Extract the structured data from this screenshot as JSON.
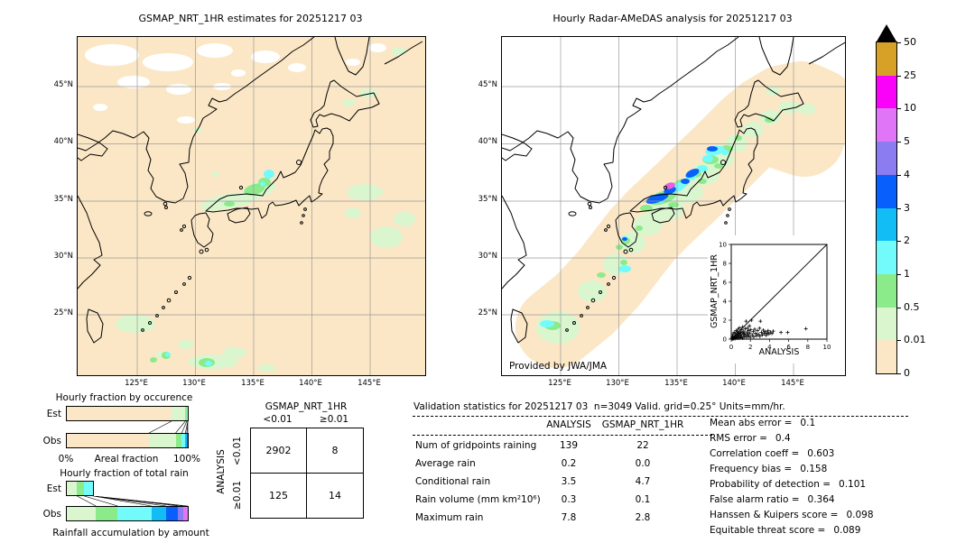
{
  "header": {
    "left_title": "GSMAP_NRT_1HR estimates for 20251217 03",
    "right_title": "Hourly Radar-AMeDAS analysis for 20251217 03"
  },
  "right_map_credit": "Provided by JWA/JMA",
  "axes": {
    "lat": [
      "45°N",
      "40°N",
      "35°N",
      "30°N",
      "25°N"
    ],
    "lon": [
      "125°E",
      "130°E",
      "135°E",
      "140°E",
      "145°E"
    ]
  },
  "colorbar": {
    "tick_labels": [
      "50",
      "25",
      "10",
      "5",
      "4",
      "3",
      "2",
      "1",
      "0.5",
      "0.01",
      "0"
    ],
    "segment_colors": [
      "#d7a127",
      "#fa01fa",
      "#e175f8",
      "#8b7cf2",
      "#085ffb",
      "#12bdf6",
      "#73fbfb",
      "#8beb8b",
      "#d9f6cf",
      "#fbe7c6"
    ],
    "overflow_color": "#000000"
  },
  "chart_data": [
    {
      "id": "hourly_fraction_by_occurrence",
      "type": "bar",
      "stacked": true,
      "orientation": "horizontal",
      "title": "Hourly fraction by occurence",
      "xlabel": "Areal fraction",
      "xlim": [
        0,
        100
      ],
      "x_tick_labels": [
        "0%",
        "100%"
      ],
      "categories": [
        "Est",
        "Obs"
      ],
      "series": [
        {
          "name": "0-0.01 mm/hr",
          "color": "#fbe7c6",
          "values": [
            86.5,
            68.0
          ]
        },
        {
          "name": "0.01-0.5 mm/hr",
          "color": "#d9f6cf",
          "values": [
            11.5,
            22.0
          ]
        },
        {
          "name": "0.5-1 mm/hr",
          "color": "#8beb8b",
          "values": [
            1.2,
            5.0
          ]
        },
        {
          "name": "1-2 mm/hr",
          "color": "#73fbfb",
          "values": [
            0.8,
            3.0
          ]
        },
        {
          "name": "2-3 mm/hr",
          "color": "#12bdf6",
          "values": [
            0,
            1.2
          ]
        },
        {
          "name": "3-4 mm/hr",
          "color": "#085ffb",
          "values": [
            0,
            0.8
          ]
        }
      ]
    },
    {
      "id": "hourly_fraction_of_total_rain",
      "type": "bar",
      "stacked": true,
      "orientation": "horizontal",
      "title": "Hourly fraction of total rain",
      "xlabel": "Rainfall accumulation by amount",
      "xlim": [
        0,
        100
      ],
      "categories": [
        "Est",
        "Obs"
      ],
      "series": [
        {
          "name": "0.01-0.5 mm/hr",
          "color": "#d9f6cf",
          "values": [
            8.5,
            24.0
          ]
        },
        {
          "name": "0.5-1 mm/hr",
          "color": "#8beb8b",
          "values": [
            6.0,
            18.0
          ]
        },
        {
          "name": "1-2 mm/hr",
          "color": "#73fbfb",
          "values": [
            7.5,
            28.0
          ]
        },
        {
          "name": "2-3 mm/hr",
          "color": "#12bdf6",
          "values": [
            0,
            12.0
          ]
        },
        {
          "name": "3-4 mm/hr",
          "color": "#085ffb",
          "values": [
            0,
            10.0
          ]
        },
        {
          "name": "4-5 mm/hr",
          "color": "#8b7cf2",
          "values": [
            0,
            4.5
          ]
        },
        {
          "name": "5-10 mm/hr",
          "color": "#e175f8",
          "values": [
            0,
            3.5
          ]
        }
      ]
    },
    {
      "id": "contingency_table",
      "type": "table",
      "col_group": "GSMAP_NRT_1HR",
      "row_group": "ANALYSIS",
      "col_headers": [
        "<0.01",
        "≥0.01"
      ],
      "row_headers": [
        "<0.01",
        "≥0.01"
      ],
      "values": [
        [
          "2902",
          "8"
        ],
        [
          "125",
          "14"
        ]
      ]
    },
    {
      "id": "validation_statistics",
      "type": "table",
      "title": "Validation statistics for 20251217 03  n=3049 Valid. grid=0.25° Units=mm/hr.",
      "columns": [
        "ANALYSIS",
        "GSMAP_NRT_1HR"
      ],
      "rows": [
        {
          "label": "Num of gridpoints raining",
          "analysis": "139",
          "gsmap": "22"
        },
        {
          "label": "Average rain",
          "analysis": "0.2",
          "gsmap": "0.0"
        },
        {
          "label": "Conditional rain",
          "analysis": "3.5",
          "gsmap": "4.7"
        },
        {
          "label": "Rain volume (mm km²10⁶)",
          "analysis": "0.3",
          "gsmap": "0.1"
        },
        {
          "label": "Maximum rain",
          "analysis": "7.8",
          "gsmap": "2.8"
        }
      ],
      "metrics": [
        {
          "label": "Mean abs error =",
          "value": "0.1"
        },
        {
          "label": "RMS error =",
          "value": "0.4"
        },
        {
          "label": "Correlation coeff =",
          "value": "0.603"
        },
        {
          "label": "Frequency bias =",
          "value": "0.158"
        },
        {
          "label": "Probability of detection =",
          "value": "0.101"
        },
        {
          "label": "False alarm ratio =",
          "value": "0.364"
        },
        {
          "label": "Hanssen & Kuipers score =",
          "value": "0.098"
        },
        {
          "label": "Equitable threat score =",
          "value": "0.089"
        }
      ]
    },
    {
      "id": "inset_scatter",
      "type": "scatter",
      "xlabel": "ANALYSIS",
      "ylabel": "GSMAP_NRT_1HR",
      "xlim": [
        0,
        10
      ],
      "ylim": [
        0,
        10
      ],
      "ticks": [
        0,
        2,
        4,
        6,
        8,
        10
      ],
      "identity_line": true,
      "points": [
        [
          0.05,
          0.1
        ],
        [
          0.1,
          0.02
        ],
        [
          0.12,
          0.3
        ],
        [
          0.15,
          0.08
        ],
        [
          0.2,
          0.15
        ],
        [
          0.2,
          0.55
        ],
        [
          0.25,
          0.05
        ],
        [
          0.3,
          0.25
        ],
        [
          0.3,
          0.7
        ],
        [
          0.35,
          0.1
        ],
        [
          0.4,
          0.3
        ],
        [
          0.4,
          0.05
        ],
        [
          0.45,
          0.6
        ],
        [
          0.5,
          0.15
        ],
        [
          0.5,
          0.9
        ],
        [
          0.55,
          0.35
        ],
        [
          0.6,
          0.1
        ],
        [
          0.6,
          0.55
        ],
        [
          0.65,
          0.8
        ],
        [
          0.7,
          0.25
        ],
        [
          0.7,
          1.05
        ],
        [
          0.75,
          0.45
        ],
        [
          0.8,
          0.1
        ],
        [
          0.8,
          0.65
        ],
        [
          0.85,
          1.2
        ],
        [
          0.9,
          0.35
        ],
        [
          0.95,
          0.75
        ],
        [
          1.0,
          0.15
        ],
        [
          1.0,
          0.55
        ],
        [
          1.05,
          1.0
        ],
        [
          1.1,
          0.3
        ],
        [
          1.15,
          0.7
        ],
        [
          1.2,
          0.1
        ],
        [
          1.2,
          1.3
        ],
        [
          1.25,
          0.5
        ],
        [
          1.3,
          0.85
        ],
        [
          1.35,
          0.25
        ],
        [
          1.4,
          0.6
        ],
        [
          1.45,
          1.1
        ],
        [
          1.5,
          0.4
        ],
        [
          1.55,
          1.9
        ],
        [
          1.6,
          0.2
        ],
        [
          1.65,
          0.75
        ],
        [
          1.7,
          1.15
        ],
        [
          1.75,
          0.5
        ],
        [
          1.8,
          0.9
        ],
        [
          1.85,
          0.3
        ],
        [
          1.9,
          1.4
        ],
        [
          1.95,
          0.65
        ],
        [
          2.0,
          0.2
        ],
        [
          2.05,
          1.0
        ],
        [
          2.1,
          2.0
        ],
        [
          2.2,
          0.45
        ],
        [
          2.3,
          0.8
        ],
        [
          2.35,
          0.25
        ],
        [
          2.45,
          1.05
        ],
        [
          2.55,
          0.6
        ],
        [
          2.65,
          0.35
        ],
        [
          2.75,
          0.9
        ],
        [
          2.85,
          0.5
        ],
        [
          2.95,
          1.15
        ],
        [
          3.0,
          0.3
        ],
        [
          3.05,
          1.9
        ],
        [
          3.15,
          0.7
        ],
        [
          3.25,
          0.45
        ],
        [
          3.35,
          0.95
        ],
        [
          3.45,
          0.6
        ],
        [
          3.55,
          0.8
        ],
        [
          3.65,
          0.4
        ],
        [
          3.75,
          0.65
        ],
        [
          3.85,
          0.9
        ],
        [
          3.95,
          0.55
        ],
        [
          4.1,
          0.75
        ],
        [
          4.25,
          0.6
        ],
        [
          4.4,
          0.85
        ],
        [
          5.2,
          0.7
        ],
        [
          5.9,
          0.7
        ],
        [
          7.8,
          1.1
        ]
      ]
    },
    {
      "id": "precip_colour_scale",
      "type": "heatmap",
      "units": "mm/hr",
      "levels": [
        0,
        0.01,
        0.5,
        1,
        2,
        3,
        4,
        5,
        10,
        25,
        50
      ],
      "colors_low_to_high": [
        "#fbe7c6",
        "#d9f6cf",
        "#8beb8b",
        "#73fbfb",
        "#12bdf6",
        "#085ffb",
        "#8b7cf2",
        "#e175f8",
        "#fa01fa",
        "#d7a127"
      ],
      "overflow_color": "#000000"
    }
  ]
}
